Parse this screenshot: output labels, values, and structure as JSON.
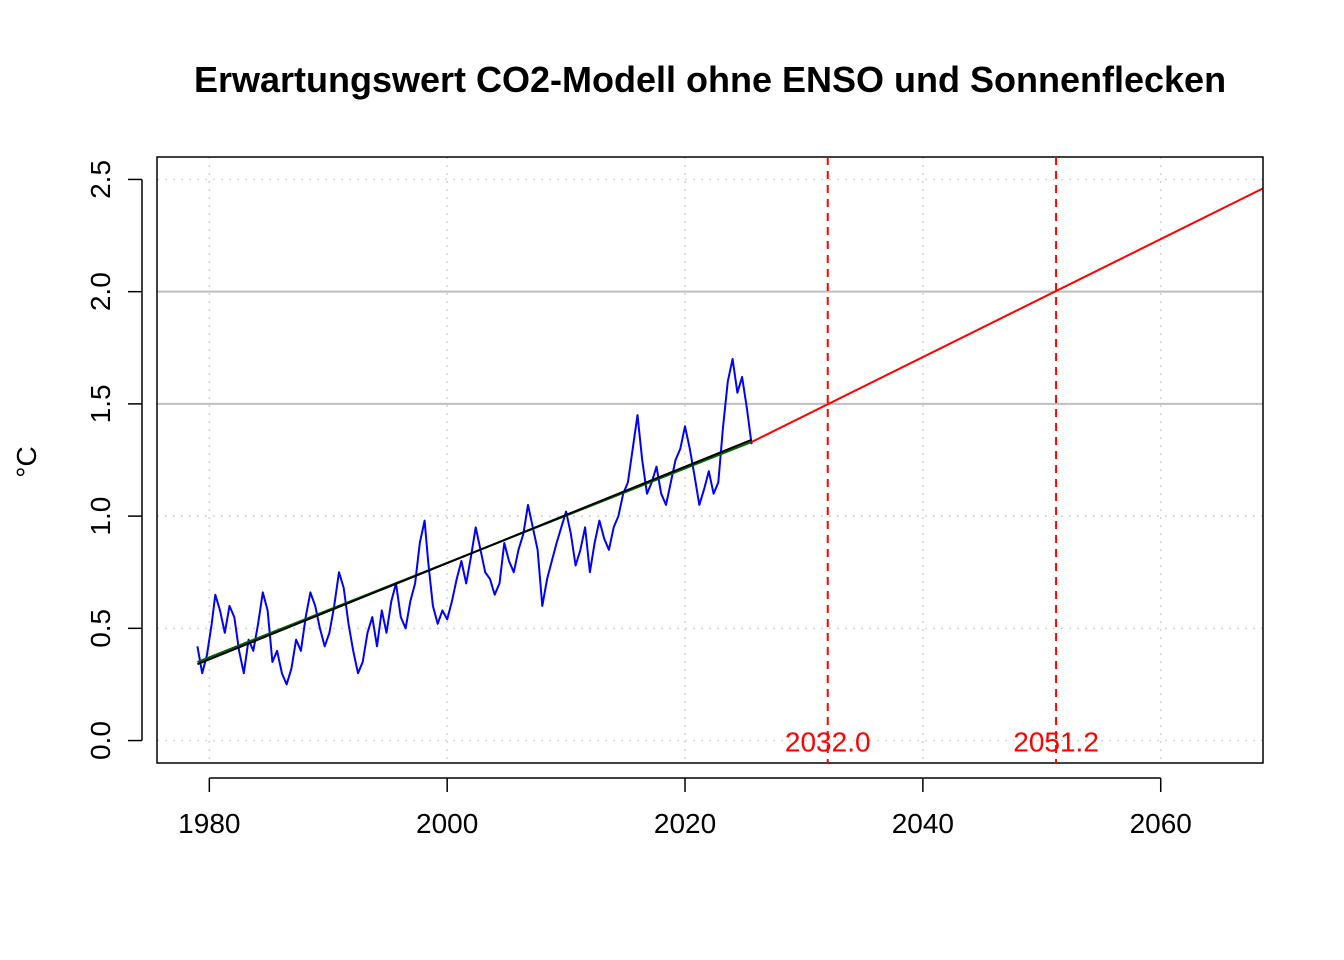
{
  "chart_data": {
    "type": "line",
    "title": "Erwartungswert CO2-Modell ohne ENSO und Sonnenflecken",
    "xlabel": "",
    "ylabel": "°C",
    "xlim": [
      1975.6,
      2068.6
    ],
    "ylim": [
      -0.1,
      2.6
    ],
    "x_ticks": [
      "1980",
      "2000",
      "2020",
      "2040",
      "2060"
    ],
    "y_ticks": [
      "0.0",
      "0.5",
      "1.0",
      "1.5",
      "2.0",
      "2.5"
    ],
    "grid": true,
    "legend": "none",
    "colors": {
      "observed": "#0000ff",
      "projection": "#ff0000",
      "model_fit": "#006400",
      "model_smooth": "#000000",
      "threshold_line": "#ff0000",
      "solid_gridline": "#bebebe",
      "dotted_gridline": "#d3d3d3"
    },
    "horizontal_solid_lines": [
      1.5,
      2.0
    ],
    "series": [
      {
        "color": "#0000ff",
        "x": [
          1979.0,
          1979.4,
          1979.8,
          1980.2,
          1980.5,
          1980.9,
          1981.3,
          1981.7,
          1982.1,
          1982.5,
          1982.9,
          1983.3,
          1983.7,
          1984.1,
          1984.5,
          1984.9,
          1985.3,
          1985.7,
          1986.1,
          1986.5,
          1986.9,
          1987.3,
          1987.7,
          1988.1,
          1988.5,
          1988.9,
          1989.3,
          1989.7,
          1990.1,
          1990.5,
          1990.9,
          1991.3,
          1991.7,
          1992.1,
          1992.5,
          1992.9,
          1993.3,
          1993.7,
          1994.1,
          1994.5,
          1994.9,
          1995.3,
          1995.7,
          1996.1,
          1996.5,
          1996.9,
          1997.3,
          1997.7,
          1998.1,
          1998.4,
          1998.8,
          1999.2,
          1999.6,
          2000.0,
          2000.4,
          2000.8,
          2001.2,
          2001.6,
          2002.0,
          2002.4,
          2002.8,
          2003.2,
          2003.6,
          2004.0,
          2004.4,
          2004.8,
          2005.2,
          2005.6,
          2006.0,
          2006.4,
          2006.8,
          2007.2,
          2007.6,
          2008.0,
          2008.4,
          2008.8,
          2009.2,
          2009.6,
          2010.0,
          2010.4,
          2010.8,
          2011.2,
          2011.6,
          2012.0,
          2012.4,
          2012.8,
          2013.2,
          2013.6,
          2014.0,
          2014.4,
          2014.8,
          2015.2,
          2015.6,
          2016.0,
          2016.4,
          2016.8,
          2017.2,
          2017.6,
          2018.0,
          2018.4,
          2018.8,
          2019.2,
          2019.6,
          2020.0,
          2020.4,
          2020.8,
          2021.2,
          2021.6,
          2022.0,
          2022.4,
          2022.8,
          2023.2,
          2023.6,
          2024.0,
          2024.4,
          2024.8,
          2025.2,
          2025.6
        ],
        "y": [
          0.42,
          0.3,
          0.38,
          0.52,
          0.65,
          0.58,
          0.48,
          0.6,
          0.55,
          0.4,
          0.3,
          0.45,
          0.4,
          0.52,
          0.66,
          0.58,
          0.35,
          0.4,
          0.3,
          0.25,
          0.32,
          0.45,
          0.4,
          0.55,
          0.66,
          0.6,
          0.5,
          0.42,
          0.48,
          0.6,
          0.75,
          0.68,
          0.52,
          0.4,
          0.3,
          0.35,
          0.48,
          0.55,
          0.42,
          0.58,
          0.48,
          0.62,
          0.7,
          0.55,
          0.5,
          0.62,
          0.7,
          0.88,
          0.98,
          0.8,
          0.6,
          0.52,
          0.58,
          0.54,
          0.62,
          0.72,
          0.8,
          0.7,
          0.82,
          0.95,
          0.85,
          0.75,
          0.72,
          0.65,
          0.7,
          0.88,
          0.8,
          0.75,
          0.85,
          0.92,
          1.05,
          0.95,
          0.85,
          0.6,
          0.72,
          0.8,
          0.88,
          0.95,
          1.02,
          0.92,
          0.78,
          0.85,
          0.95,
          0.75,
          0.88,
          0.98,
          0.9,
          0.85,
          0.95,
          1.0,
          1.1,
          1.15,
          1.3,
          1.45,
          1.25,
          1.1,
          1.15,
          1.22,
          1.1,
          1.05,
          1.15,
          1.25,
          1.3,
          1.4,
          1.3,
          1.18,
          1.05,
          1.12,
          1.2,
          1.1,
          1.15,
          1.4,
          1.6,
          1.7,
          1.55,
          1.62,
          1.48,
          1.32
        ]
      },
      {
        "color": "#ff0000",
        "x": [
          2025.6,
          2068.6
        ],
        "y": [
          1.33,
          2.46
        ]
      },
      {
        "color": "#006400",
        "x": [
          1979.0,
          2025.6
        ],
        "y": [
          0.35,
          1.33
        ]
      },
      {
        "color": "#000000",
        "x": [
          1979.0,
          2025.6
        ],
        "y": [
          0.34,
          1.34
        ]
      }
    ],
    "vertical_lines": [
      {
        "x": 2032.0,
        "label": "2032.0",
        "color": "#ff0000"
      },
      {
        "x": 2051.2,
        "label": "2051.2",
        "color": "#ff0000"
      }
    ]
  }
}
